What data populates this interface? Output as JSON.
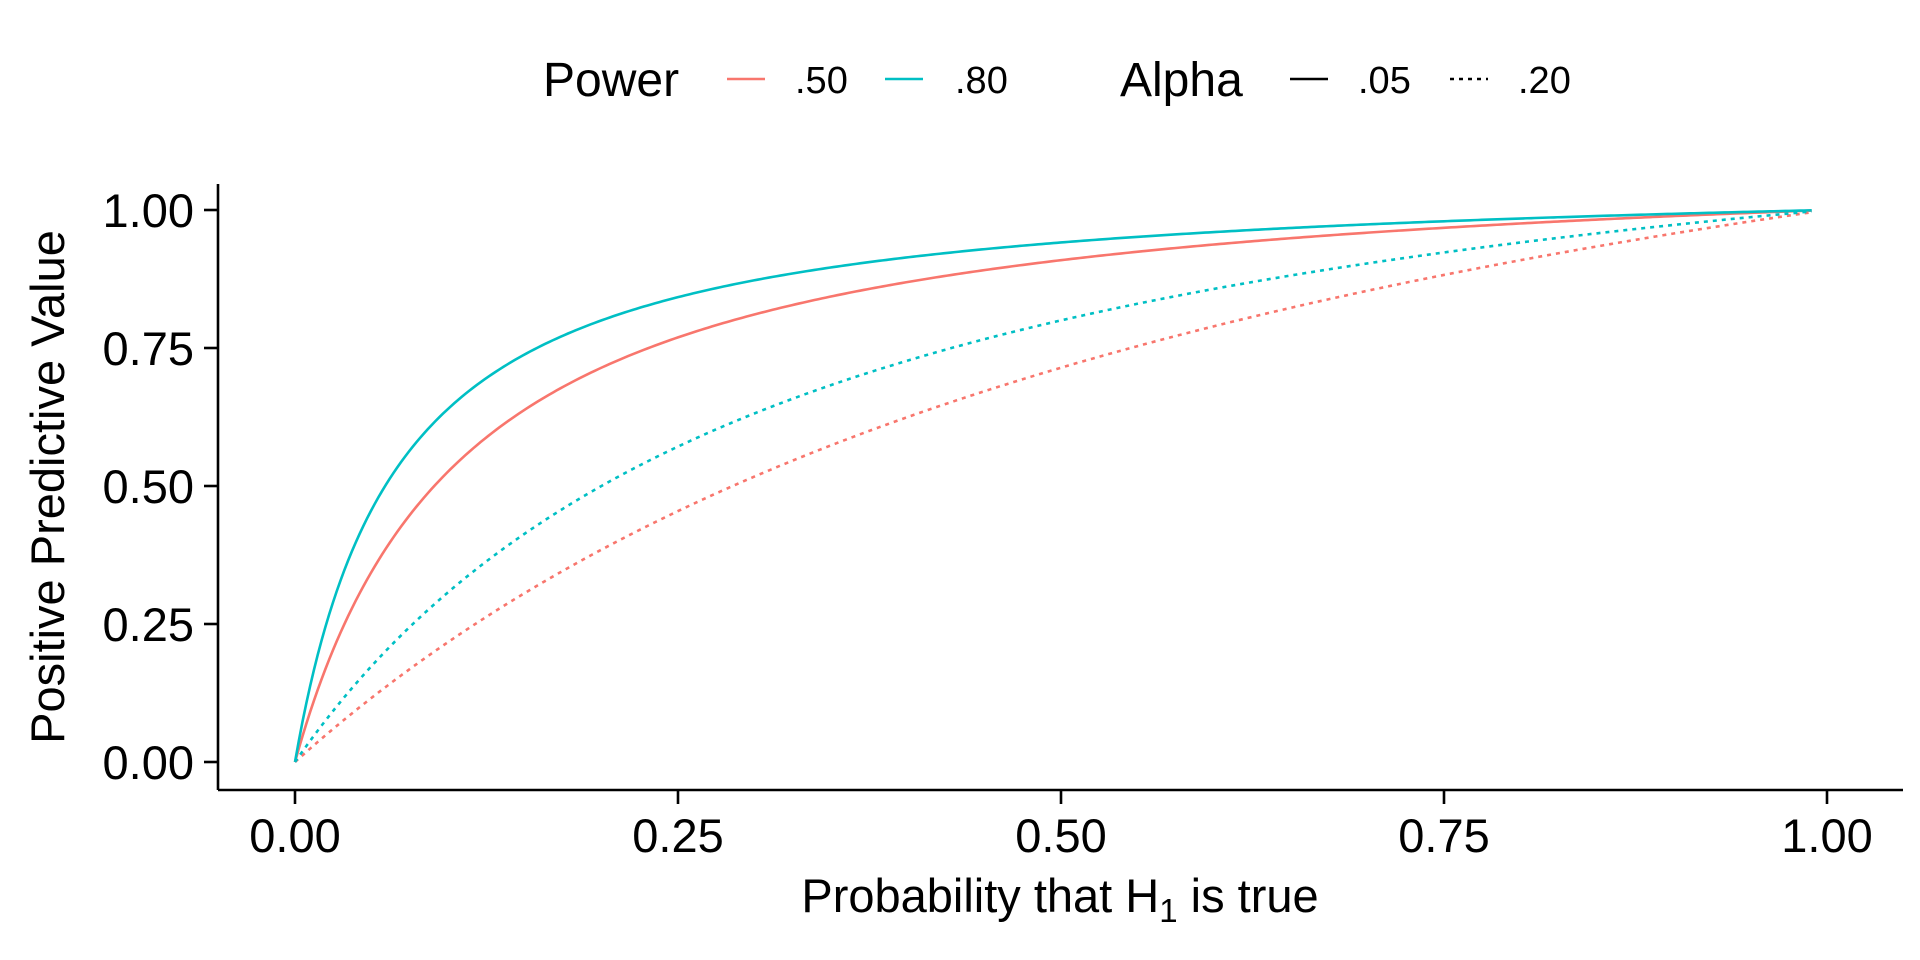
{
  "chart_data": {
    "type": "line",
    "xlabel": "Probability that H",
    "xlabel_subscript": "1",
    "xlabel_suffix": " is true",
    "ylabel": "Positive Predictive Value",
    "xlim": [
      0,
      1
    ],
    "ylim": [
      0,
      1
    ],
    "x_ticks": [
      "0.00",
      "0.25",
      "0.50",
      "0.75",
      "1.00"
    ],
    "y_ticks": [
      "0.00",
      "0.25",
      "0.50",
      "0.75",
      "1.00"
    ],
    "x_domain": [
      0,
      0.99
    ],
    "formula": "PPV = power * x / (power * x + alpha * (1 - x))",
    "legend": {
      "placement": "top",
      "color_title": "Power",
      "color_items": [
        {
          "label": ".50",
          "color": "#F8766D"
        },
        {
          "label": ".80",
          "color": "#00BFC4"
        }
      ],
      "linetype_title": "Alpha",
      "linetype_items": [
        {
          "label": ".05",
          "linetype": "solid"
        },
        {
          "label": ".20",
          "linetype": "dotted"
        }
      ]
    },
    "series": [
      {
        "power": 0.5,
        "alpha": 0.05,
        "color": "#F8766D",
        "linetype": "solid",
        "x": [
          0,
          0.05,
          0.1,
          0.25,
          0.5,
          0.75,
          0.99
        ],
        "y": [
          0,
          0.345,
          0.526,
          0.769,
          0.909,
          0.968,
          0.999
        ]
      },
      {
        "power": 0.8,
        "alpha": 0.05,
        "color": "#00BFC4",
        "linetype": "solid",
        "x": [
          0,
          0.05,
          0.1,
          0.25,
          0.5,
          0.75,
          0.99
        ],
        "y": [
          0,
          0.457,
          0.64,
          0.842,
          0.941,
          0.98,
          0.999
        ]
      },
      {
        "power": 0.5,
        "alpha": 0.2,
        "color": "#F8766D",
        "linetype": "dotted",
        "x": [
          0,
          0.05,
          0.1,
          0.25,
          0.5,
          0.75,
          0.99
        ],
        "y": [
          0,
          0.116,
          0.217,
          0.455,
          0.714,
          0.882,
          0.996
        ]
      },
      {
        "power": 0.8,
        "alpha": 0.2,
        "color": "#00BFC4",
        "linetype": "dotted",
        "x": [
          0,
          0.05,
          0.1,
          0.25,
          0.5,
          0.75,
          0.99
        ],
        "y": [
          0,
          0.174,
          0.308,
          0.571,
          0.8,
          0.923,
          0.997
        ]
      }
    ]
  }
}
